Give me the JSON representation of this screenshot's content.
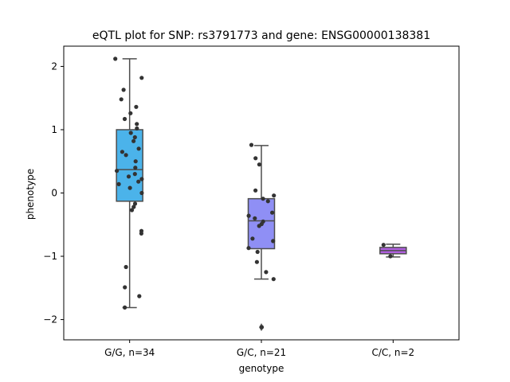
{
  "chart_data": {
    "type": "box",
    "title": "eQTL plot for SNP: rs3791773 and gene: ENSG00000138381",
    "xlabel": "genotype",
    "ylabel": "phenotype",
    "ylim": [
      -2.32,
      2.32
    ],
    "yticks": [
      -2,
      -1,
      0,
      1,
      2
    ],
    "grid": false,
    "categories": [
      "G/G, n=34",
      "G/C, n=21",
      "C/C, n=2"
    ],
    "boxes": [
      {
        "color": "#4bb3ea",
        "whisker_low": -1.81,
        "q1": -0.13,
        "median": 0.37,
        "q3": 1.0,
        "whisker_high": 2.12,
        "outliers": []
      },
      {
        "color": "#8f8ff5",
        "whisker_low": -1.36,
        "q1": -0.88,
        "median": -0.44,
        "q3": -0.09,
        "whisker_high": 0.75,
        "outliers": [
          -2.12
        ]
      },
      {
        "color": "#b15fe0",
        "whisker_low": -1.01,
        "q1": -0.96,
        "median": -0.91,
        "q3": -0.86,
        "whisker_high": -0.81,
        "outliers": []
      }
    ],
    "points": [
      [
        2.12,
        1.82,
        1.63,
        1.48,
        1.36,
        1.26,
        1.17,
        1.09,
        1.02,
        0.95,
        0.88,
        0.82,
        0.7,
        0.65,
        0.6,
        0.5,
        0.4,
        0.35,
        0.3,
        0.26,
        0.22,
        0.18,
        0.14,
        0.08,
        0.0,
        -0.17,
        -0.22,
        -0.27,
        -0.6,
        -0.64,
        -1.17,
        -1.49,
        -1.63,
        -1.81
      ],
      [
        0.76,
        0.55,
        0.45,
        0.04,
        -0.04,
        -0.09,
        -0.13,
        -0.31,
        -0.36,
        -0.4,
        -0.45,
        -0.49,
        -0.52,
        -0.72,
        -0.76,
        -0.87,
        -0.93,
        -1.09,
        -1.25,
        -1.36,
        -2.12
      ],
      [
        -0.82,
        -1.0
      ]
    ]
  }
}
